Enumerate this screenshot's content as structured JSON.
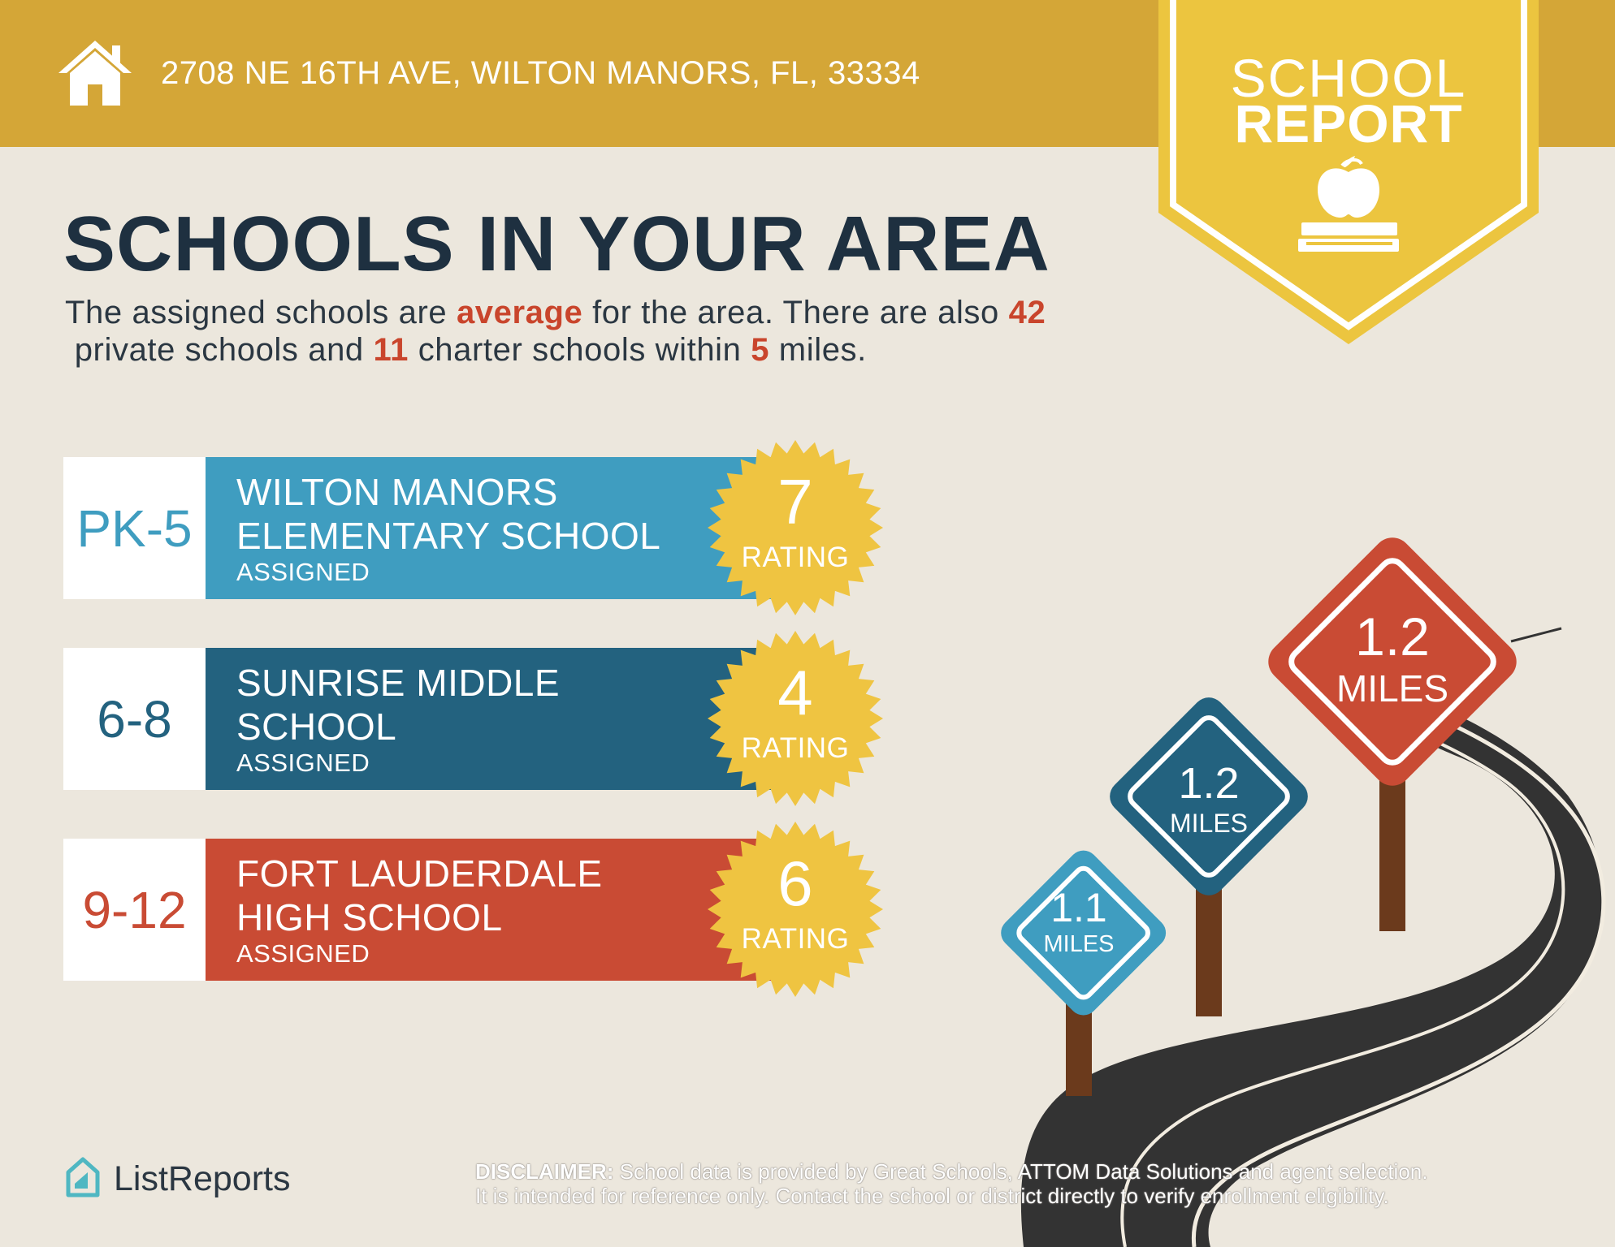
{
  "header": {
    "address": "2708 NE 16TH AVE, WILTON MANORS, FL, 33334",
    "home_icon": "home-icon"
  },
  "badge": {
    "line1": "SCHOOL",
    "line2": "REPORT",
    "icon": "apple-on-books-icon"
  },
  "headline": "SCHOOLS IN YOUR AREA",
  "summary": {
    "part1": "The assigned schools are ",
    "quality": "average",
    "part2": " for the area. There are also ",
    "private_count": "42",
    "part3": " private schools and ",
    "charter_count": "11",
    "part4": " charter schools within ",
    "radius": "5",
    "part5": " miles."
  },
  "schools": [
    {
      "grades": "PK-5",
      "name": "WILTON MANORS ELEMENTARY SCHOOL",
      "status": "ASSIGNED",
      "rating": "7",
      "rating_label": "RATING",
      "color": "#3f9dc0",
      "grade_color": "#3f9dc0"
    },
    {
      "grades": "6-8",
      "name": "SUNRISE MIDDLE SCHOOL",
      "status": "ASSIGNED",
      "rating": "4",
      "rating_label": "RATING",
      "color": "#23627f",
      "grade_color": "#23627f"
    },
    {
      "grades": "9-12",
      "name": "FORT LAUDERDALE HIGH SCHOOL",
      "status": "ASSIGNED",
      "rating": "6",
      "rating_label": "RATING",
      "color": "#c94b34",
      "grade_color": "#c94b34"
    }
  ],
  "distance_signs": [
    {
      "value": "1.1",
      "unit": "MILES",
      "color": "#3f9dc0"
    },
    {
      "value": "1.2",
      "unit": "MILES",
      "color": "#23627f"
    },
    {
      "value": "1.2",
      "unit": "MILES",
      "color": "#c94b34"
    }
  ],
  "footer": {
    "brand": "ListReports",
    "disclaimer_label": "DISCLAIMER:",
    "disclaimer_text": " School data is provided by Great Schools, ATTOM Data Solutions and agent selection.",
    "disclaimer_text2": "It is intended for reference only. Contact the school or district directly to verify enrollment eligibility."
  },
  "colors": {
    "gold": "#d4a637",
    "badge_yellow": "#ecc53f",
    "seal_yellow": "#efc441",
    "navy_text": "#1e3040",
    "highlight": "#c9452c",
    "background": "#ece7dd"
  }
}
